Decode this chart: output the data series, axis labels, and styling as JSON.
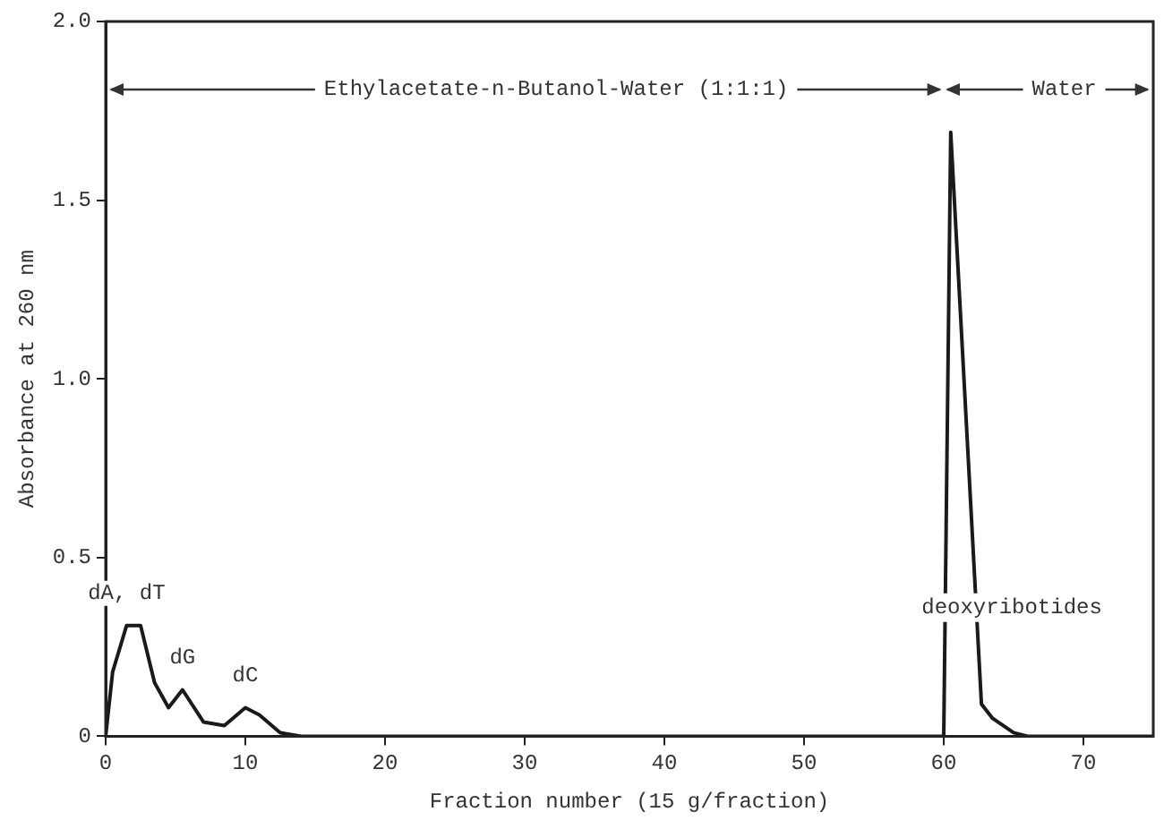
{
  "chart_data": {
    "type": "line",
    "xlabel": "Fraction number (15 g/fraction)",
    "ylabel": "Absorbance at 260 nm",
    "x": [
      0,
      0.5,
      1.5,
      2.5,
      3.5,
      4.5,
      5.5,
      7,
      8.5,
      10,
      11,
      12.5,
      14,
      60,
      60.5,
      62.7,
      63.5,
      65,
      66,
      75
    ],
    "series": [
      {
        "color": "#1a1a1a",
        "values": [
          0,
          0.18,
          0.31,
          0.31,
          0.15,
          0.08,
          0.13,
          0.04,
          0.03,
          0.08,
          0.06,
          0.01,
          0,
          0,
          1.69,
          0.09,
          0.05,
          0.01,
          0,
          0
        ]
      }
    ],
    "xlim": [
      0,
      75
    ],
    "ylim": [
      0,
      2.0
    ],
    "xticks": [
      0,
      10,
      20,
      30,
      40,
      50,
      60,
      70
    ],
    "yticks": [
      0,
      0.5,
      {
        "value": 1.0,
        "label": "1.0"
      },
      1.5,
      {
        "value": 2.0,
        "label": "2.0"
      }
    ],
    "annotations": [
      {
        "text": "dA, dT",
        "x": 1.5,
        "y": 0.31
      },
      {
        "text": "dG",
        "x": 5.5,
        "y": 0.13
      },
      {
        "text": "dC",
        "x": 10,
        "y": 0.08
      },
      "Ethylacetate-n-Butanol-Water (1:1:1)",
      "Water",
      "deoxyribotides"
    ],
    "grid": false,
    "legend": false,
    "marker": "none",
    "line_style": "solid"
  }
}
